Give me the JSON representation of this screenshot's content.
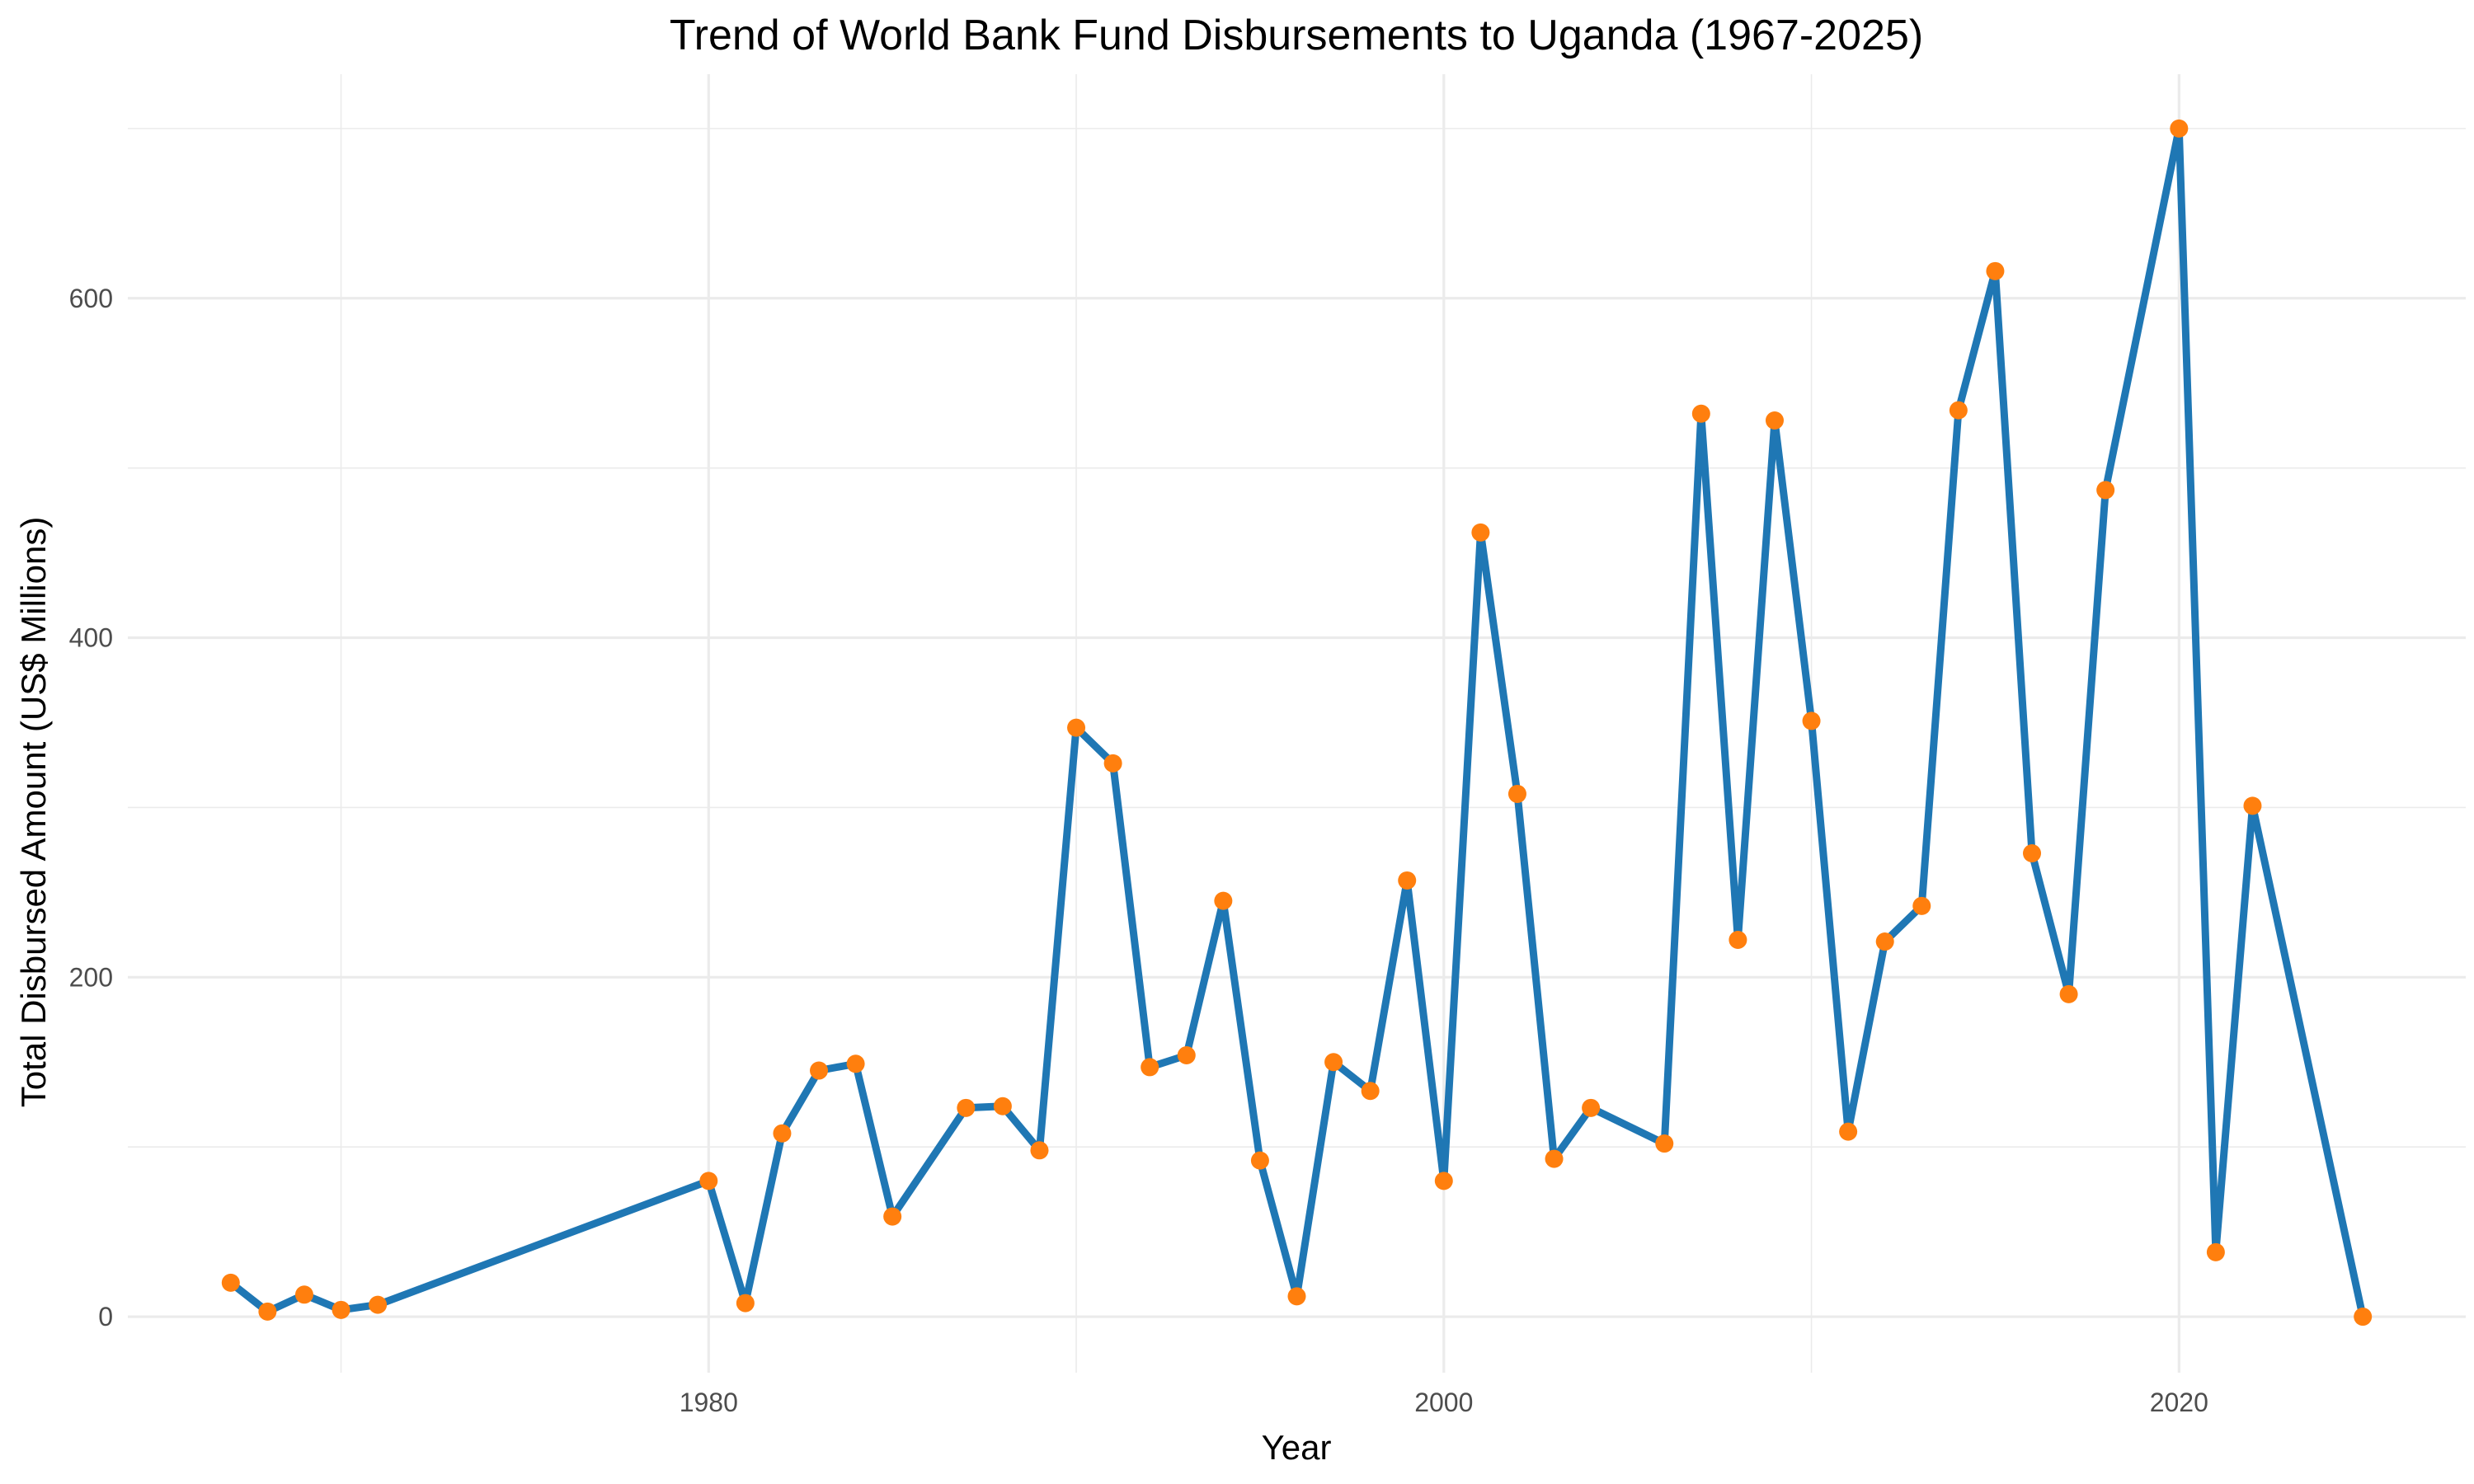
{
  "chart_data": {
    "type": "line",
    "title": "Trend of World Bank Fund Disbursements to Uganda (1967-2025)",
    "xlabel": "Year",
    "ylabel": "Total Disbursed Amount (US$ Millions)",
    "x_ticks": [
      1980,
      2000,
      2020
    ],
    "y_ticks": [
      0,
      200,
      400,
      600
    ],
    "xlim": [
      1964.2,
      2027.8
    ],
    "ylim": [
      -33,
      732
    ],
    "grid": true,
    "legend": "none",
    "colors": {
      "line": "#1f77b4",
      "point": "#ff7f0e",
      "grid": "#ebebeb"
    },
    "series": [
      {
        "x": [
          1967,
          1968,
          1969,
          1970,
          1971,
          1980,
          1981,
          1982,
          1983,
          1984,
          1985,
          1987,
          1988,
          1989,
          1990,
          1991,
          1992,
          1993,
          1994,
          1995,
          1996,
          1997,
          1998,
          1999,
          2000,
          2001,
          2002,
          2003,
          2004,
          2006,
          2007,
          2008,
          2009,
          2010,
          2011,
          2012,
          2013,
          2014,
          2015,
          2016,
          2017,
          2018,
          2020,
          2021,
          2022,
          2025
        ],
        "y": [
          20,
          3,
          13,
          4,
          7,
          80,
          8,
          108,
          145,
          149,
          59,
          123,
          124,
          98,
          347,
          326,
          147,
          154,
          245,
          92,
          12,
          150,
          133,
          257,
          80,
          462,
          308,
          93,
          123,
          102,
          532,
          222,
          528,
          351,
          109,
          221,
          242,
          534,
          616,
          273,
          190,
          487,
          700,
          38,
          301,
          0
        ]
      }
    ]
  }
}
